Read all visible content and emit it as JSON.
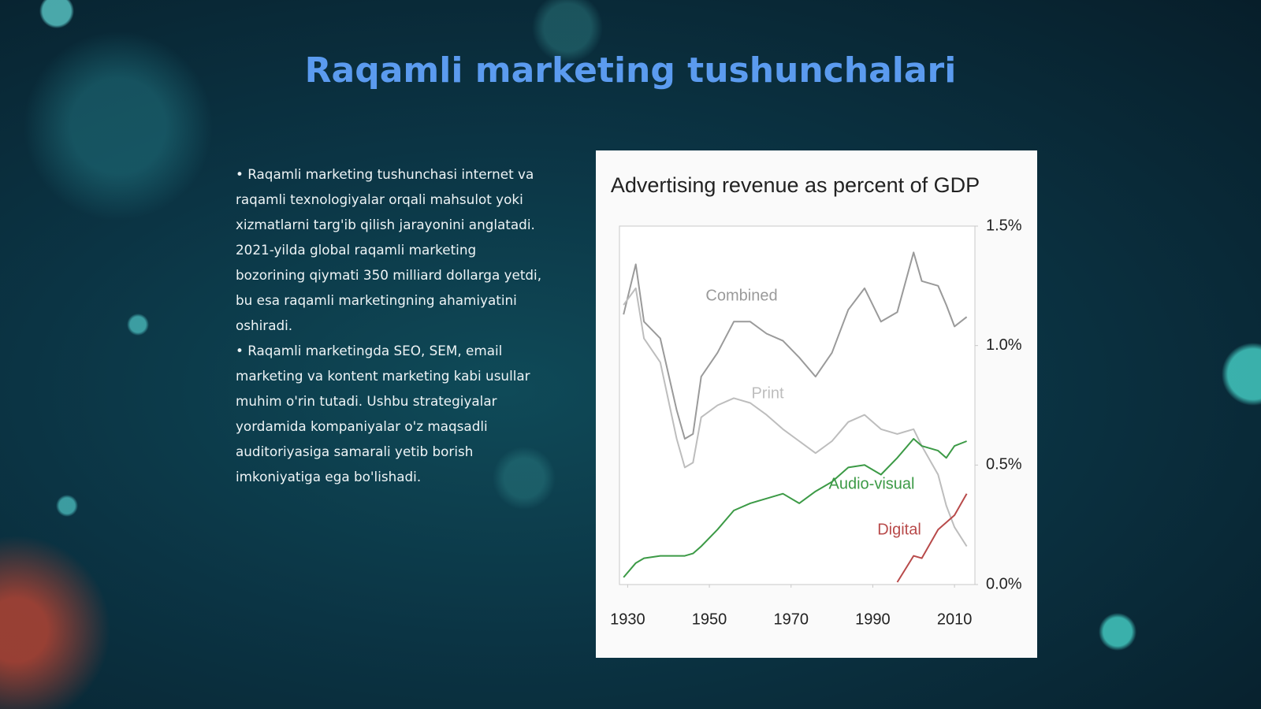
{
  "slide": {
    "title": "Raqamli marketing tushunchalari",
    "paragraphs": [
      "• Raqamli marketing tushunchasi internet va raqamli texnologiyalar orqali mahsulot yoki xizmatlarni targ'ib qilish jarayonini anglatadi. 2021-yilda global raqamli marketing bozorining qiymati 350 milliard dollarga yetdi, bu esa raqamli marketingning ahamiyatini oshiradi.",
      "• Raqamli marketingda SEO, SEM, email marketing va kontent marketing kabi usullar muhim o'rin tutadi. Ushbu strategiyalar yordamida kompaniyalar o'z maqsadli auditoriyasiga samarali yetib borish imkoniyatiga ega bo'lishadi."
    ]
  },
  "chart_data": {
    "type": "line",
    "title": "Advertising revenue as percent of GDP",
    "x": [
      1929,
      1932,
      1934,
      1938,
      1942,
      1944,
      1946,
      1948,
      1952,
      1956,
      1960,
      1964,
      1968,
      1972,
      1976,
      1980,
      1984,
      1988,
      1992,
      1996,
      2000,
      2002,
      2006,
      2008,
      2010,
      2013
    ],
    "series": [
      {
        "name": "Combined",
        "color": "#9a9a9a",
        "values": [
          1.13,
          1.34,
          1.1,
          1.03,
          0.73,
          0.61,
          0.63,
          0.87,
          0.97,
          1.1,
          1.1,
          1.05,
          1.02,
          0.95,
          0.87,
          0.97,
          1.15,
          1.24,
          1.1,
          1.14,
          1.39,
          1.27,
          1.25,
          1.17,
          1.08,
          1.12
        ]
      },
      {
        "name": "Print",
        "color": "#bdbdbd",
        "values": [
          1.17,
          1.24,
          1.03,
          0.93,
          0.61,
          0.49,
          0.51,
          0.7,
          0.75,
          0.78,
          0.76,
          0.71,
          0.65,
          0.6,
          0.55,
          0.6,
          0.68,
          0.71,
          0.65,
          0.63,
          0.65,
          0.58,
          0.46,
          0.33,
          0.24,
          0.16
        ]
      },
      {
        "name": "Audio-visual",
        "color": "#3c9a46",
        "values": [
          0.03,
          0.09,
          0.11,
          0.12,
          0.12,
          0.12,
          0.13,
          0.16,
          0.23,
          0.31,
          0.34,
          0.36,
          0.38,
          0.34,
          0.39,
          0.43,
          0.49,
          0.5,
          0.46,
          0.53,
          0.61,
          0.58,
          0.56,
          0.53,
          0.58,
          0.6
        ]
      },
      {
        "name": "Digital",
        "color": "#b84a4a",
        "values": [
          null,
          null,
          null,
          null,
          null,
          null,
          null,
          null,
          null,
          null,
          null,
          null,
          null,
          null,
          null,
          null,
          null,
          null,
          null,
          0.01,
          0.12,
          0.11,
          0.23,
          0.26,
          0.29,
          0.38
        ]
      }
    ],
    "xlim": [
      1928,
      2015
    ],
    "xticks": [
      1930,
      1950,
      1970,
      1990,
      2010
    ],
    "ylim": [
      0,
      1.5
    ],
    "yticks": [
      {
        "value": 0,
        "label": "0.0%"
      },
      {
        "value": 0.5,
        "label": "0.5%"
      },
      {
        "value": 1.0,
        "label": "1.0%"
      },
      {
        "value": 1.5,
        "label": "1.5%"
      }
    ]
  }
}
